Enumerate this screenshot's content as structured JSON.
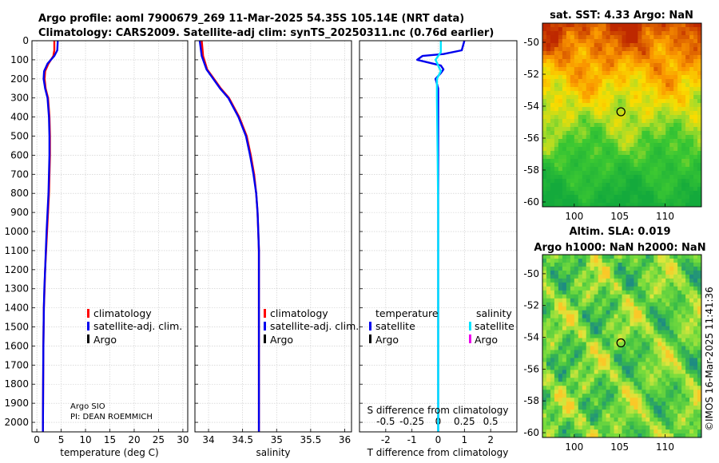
{
  "header": {
    "line1": "Argo profile: aoml 7900679_269 11-Mar-2025 54.35S 105.14E (NRT data)",
    "line2": "Climatology: CARS2009. Satellite-adj clim: synTS_20250311.nc (0.76d earlier)"
  },
  "credits": {
    "institution": "Argo SIO",
    "pi": "PI: DEAN ROEMMICH",
    "stamp": "©IMOS 16-Mar-2025 11:41:36"
  },
  "colors": {
    "climatology": "#ff0000",
    "satellite": "#0000ee",
    "argo": "#000000",
    "sat_diff": "#00e5ff",
    "argo_s": "#ee00ee"
  },
  "chart_data": [
    {
      "id": "temperature",
      "type": "line",
      "xlabel": "temperature (deg C)",
      "xlim": [
        -1,
        31
      ],
      "xticks": [
        0,
        5,
        10,
        15,
        20,
        25,
        30
      ],
      "ylim": [
        2050,
        0
      ],
      "yticks": [
        0,
        100,
        200,
        300,
        400,
        500,
        600,
        700,
        800,
        900,
        1000,
        1100,
        1200,
        1300,
        1400,
        1500,
        1600,
        1700,
        1800,
        1900,
        2000
      ],
      "legend": [
        "climatology",
        "satellite-adj. clim.",
        "Argo"
      ],
      "series": [
        {
          "name": "climatology",
          "color": "#ff0000",
          "x": [
            3.6,
            3.6,
            3.4,
            2.4,
            1.7,
            1.6,
            1.8,
            2.3,
            2.6,
            2.7,
            2.7,
            2.6,
            2.5,
            2.3,
            2.1,
            1.9,
            1.7,
            1.6,
            1.45,
            1.4,
            1.35,
            1.3,
            1.25
          ],
          "y": [
            0,
            50,
            80,
            120,
            160,
            200,
            250,
            300,
            400,
            500,
            600,
            700,
            800,
            900,
            1000,
            1100,
            1200,
            1300,
            1400,
            1500,
            1600,
            1800,
            2050
          ]
        },
        {
          "name": "satellite-adj. clim.",
          "color": "#0000ee",
          "x": [
            4.3,
            4.2,
            3.6,
            2.2,
            1.5,
            1.4,
            1.7,
            2.2,
            2.5,
            2.6,
            2.6,
            2.5,
            2.4,
            2.2,
            2.0,
            1.85,
            1.7,
            1.55,
            1.45,
            1.4,
            1.35,
            1.3,
            1.25
          ],
          "y": [
            0,
            50,
            80,
            120,
            160,
            200,
            250,
            300,
            400,
            500,
            600,
            700,
            800,
            900,
            1000,
            1100,
            1200,
            1300,
            1400,
            1500,
            1600,
            1800,
            2050
          ]
        }
      ]
    },
    {
      "id": "salinity",
      "type": "line",
      "xlabel": "salinity",
      "xlim": [
        33.8,
        36.1
      ],
      "xticks": [
        34,
        34.5,
        35,
        35.5,
        36
      ],
      "xticklabels": [
        "34",
        "34.5",
        "35",
        "35.5",
        "36"
      ],
      "ylim": [
        2050,
        0
      ],
      "legend": [
        "climatology",
        "satellite-adj. clim.",
        "Argo"
      ],
      "series": [
        {
          "name": "climatology",
          "color": "#ff0000",
          "x": [
            33.9,
            33.92,
            33.98,
            34.08,
            34.18,
            34.3,
            34.45,
            34.56,
            34.62,
            34.67,
            34.7,
            34.72,
            34.73,
            34.74,
            34.74,
            34.74,
            34.74
          ],
          "y": [
            0,
            80,
            150,
            200,
            250,
            300,
            400,
            500,
            600,
            700,
            800,
            900,
            1000,
            1100,
            1300,
            1600,
            2050
          ]
        },
        {
          "name": "satellite-adj. clim.",
          "color": "#0000ee",
          "x": [
            33.87,
            33.9,
            33.97,
            34.07,
            34.17,
            34.29,
            34.44,
            34.55,
            34.61,
            34.66,
            34.7,
            34.72,
            34.73,
            34.74,
            34.74,
            34.74,
            34.74
          ],
          "y": [
            0,
            80,
            150,
            200,
            250,
            300,
            400,
            500,
            600,
            700,
            800,
            900,
            1000,
            1100,
            1300,
            1600,
            2050
          ]
        }
      ]
    },
    {
      "id": "difference",
      "type": "line",
      "xlabel": "T difference from climatology",
      "xlabel2": "S difference from climatology",
      "xlim": [
        -3,
        3
      ],
      "xticks": [
        -2,
        -1,
        0,
        1,
        2
      ],
      "s_xticks": [
        -0.5,
        -0.25,
        0,
        0.25,
        0.5
      ],
      "s_xticklabels": [
        "-0.5",
        "-0.25",
        "0",
        "0.25",
        "0.5"
      ],
      "ylim": [
        2050,
        0
      ],
      "legend_t_title": "temperature",
      "legend_s_title": "salinity",
      "legend_t": [
        "satellite",
        "Argo"
      ],
      "legend_s": [
        "satellite",
        "Argo"
      ],
      "series": [
        {
          "name": "T satellite",
          "color": "#0000ee",
          "x": [
            1.0,
            0.9,
            0.2,
            -0.6,
            -0.8,
            0.1,
            0.2,
            0.1,
            -0.1,
            0,
            0,
            0,
            0,
            0,
            0,
            0,
            0,
            0
          ],
          "y": [
            0,
            50,
            70,
            80,
            100,
            130,
            150,
            170,
            200,
            250,
            350,
            500,
            700,
            900,
            1200,
            1500,
            1800,
            2050
          ]
        },
        {
          "name": "S satellite",
          "color": "#00e5ff",
          "x": [
            0.1,
            0.1,
            -0.1,
            0,
            0.1,
            -0.05,
            -0.05,
            -0.02,
            0,
            0,
            0
          ],
          "y": [
            0,
            60,
            100,
            130,
            160,
            200,
            300,
            600,
            900,
            1500,
            2050
          ]
        }
      ]
    },
    {
      "id": "sst_map",
      "type": "heatmap",
      "title": "sat. SST: 4.33 Argo: NaN",
      "xlim": [
        96.5,
        114
      ],
      "ylim": [
        -60.3,
        -48.8
      ],
      "xticks": [
        100,
        105,
        110
      ],
      "yticks": [
        -50,
        -52,
        -54,
        -56,
        -58,
        -60
      ],
      "marker": {
        "x": 105.14,
        "y": -54.35
      }
    },
    {
      "id": "sla_map",
      "type": "heatmap",
      "title": "Altim. SLA: 0.019",
      "subtitle": "Argo h1000: NaN h2000: NaN",
      "xlim": [
        96.5,
        114
      ],
      "ylim": [
        -60.3,
        -48.8
      ],
      "xticks": [
        100,
        105,
        110
      ],
      "yticks": [
        -50,
        -52,
        -54,
        -56,
        -58,
        -60
      ],
      "marker": {
        "x": 105.14,
        "y": -54.35
      }
    }
  ]
}
